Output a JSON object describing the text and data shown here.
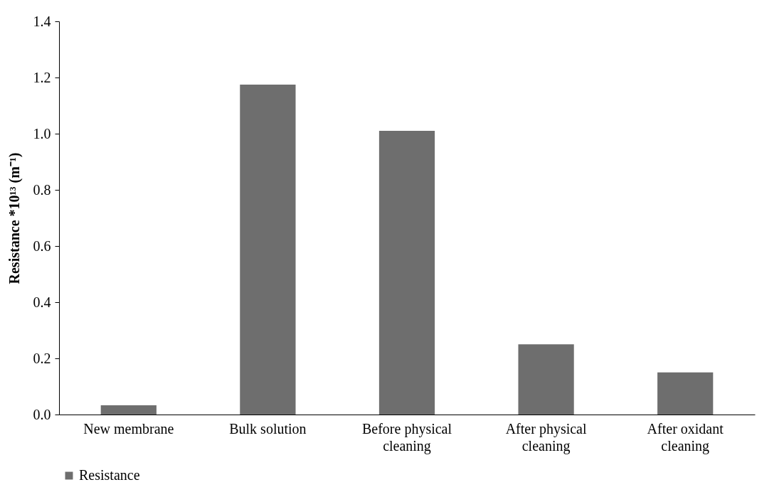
{
  "chart_data": {
    "type": "bar",
    "ylabel": "Resistance *10¹³ (m⁻¹)",
    "categories": [
      "New membrane",
      "Bulk solution",
      "Before physical cleaning",
      "After physical cleaning",
      "After oxidant cleaning"
    ],
    "series": [
      {
        "name": "Resistance",
        "color": "#6e6e6e",
        "values": [
          0.033,
          1.175,
          1.01,
          0.25,
          0.15
        ]
      }
    ],
    "ylim": [
      0,
      1.4
    ],
    "yticks": [
      {
        "value": 0,
        "label": "0.0"
      },
      {
        "value": 0.2,
        "label": "0.2"
      },
      {
        "value": 0.4,
        "label": "0.4"
      },
      {
        "value": 0.6,
        "label": "0.6"
      },
      {
        "value": 0.8,
        "label": "0.8"
      },
      {
        "value": 1.0,
        "label": "1.0"
      },
      {
        "value": 1.2,
        "label": "1.2"
      },
      {
        "value": 1.4,
        "label": "1.4"
      }
    ],
    "grid": false,
    "legend": "bottom"
  }
}
